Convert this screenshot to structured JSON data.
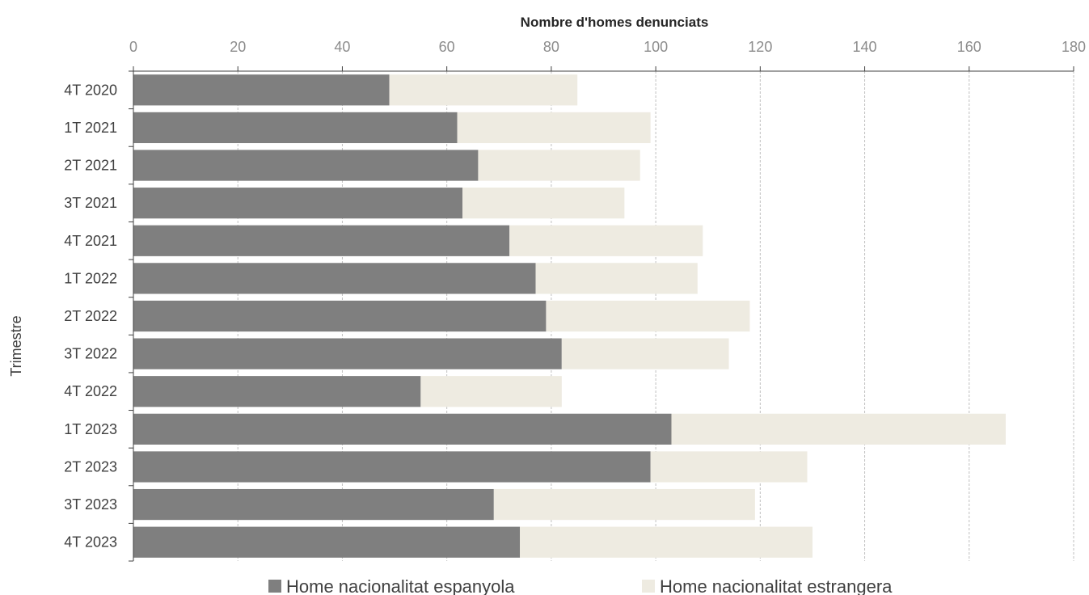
{
  "chart_data": {
    "type": "bar",
    "orientation": "horizontal",
    "stacked": true,
    "xlabel": "Nombre d'homes denunciats",
    "ylabel": "Trimestre",
    "xlim": [
      0,
      180
    ],
    "xticks": [
      0,
      20,
      40,
      60,
      80,
      100,
      120,
      140,
      160,
      180
    ],
    "grid": true,
    "legend": "bottom",
    "categories": [
      "4T 2020",
      "1T 2021",
      "2T 2021",
      "3T 2021",
      "4T 2021",
      "1T 2022",
      "2T 2022",
      "3T 2022",
      "4T 2022",
      "1T 2023",
      "2T 2023",
      "3T 2023",
      "4T 2023"
    ],
    "series": [
      {
        "name": "Home nacionalitat espanyola",
        "color": "#7f7f7f",
        "values": [
          49,
          62,
          66,
          63,
          72,
          77,
          79,
          82,
          55,
          103,
          99,
          69,
          74
        ]
      },
      {
        "name": "Home nacionalitat estrangera",
        "color": "#eeebe1",
        "values": [
          36,
          37,
          31,
          31,
          37,
          31,
          39,
          32,
          27,
          64,
          30,
          50,
          56
        ]
      }
    ]
  }
}
